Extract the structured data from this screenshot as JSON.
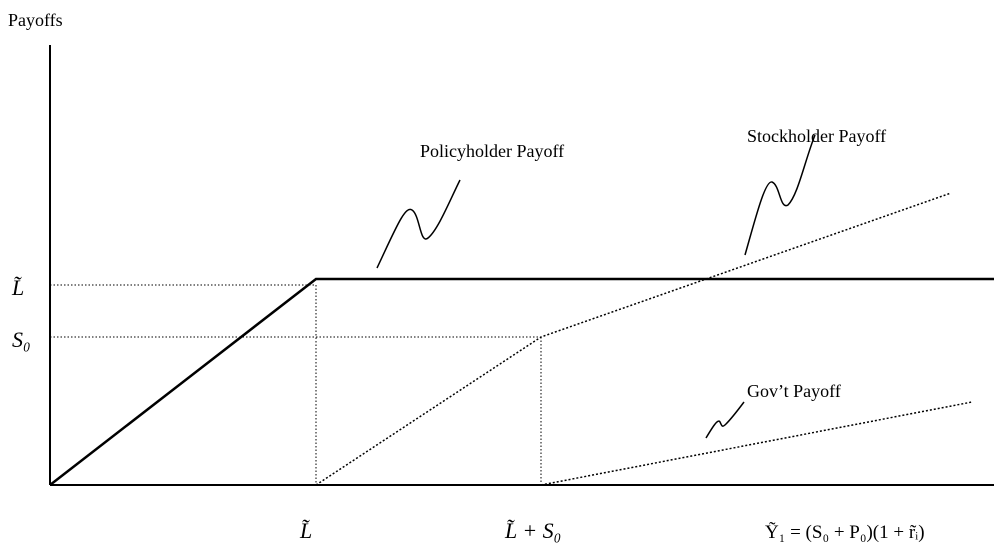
{
  "y_axis_label": "Payoffs",
  "y_labels": [
    "L̃",
    "S₀"
  ],
  "x_labels": [
    "L̃",
    "L̃ + S₀",
    "Ỹ₁ = (S₀ + P₀)(1 + r̃ᵢ)"
  ],
  "annotations": [
    "Policyholder Payoff",
    "Stockholder Payoff",
    "Gov’t Payoff"
  ]
}
